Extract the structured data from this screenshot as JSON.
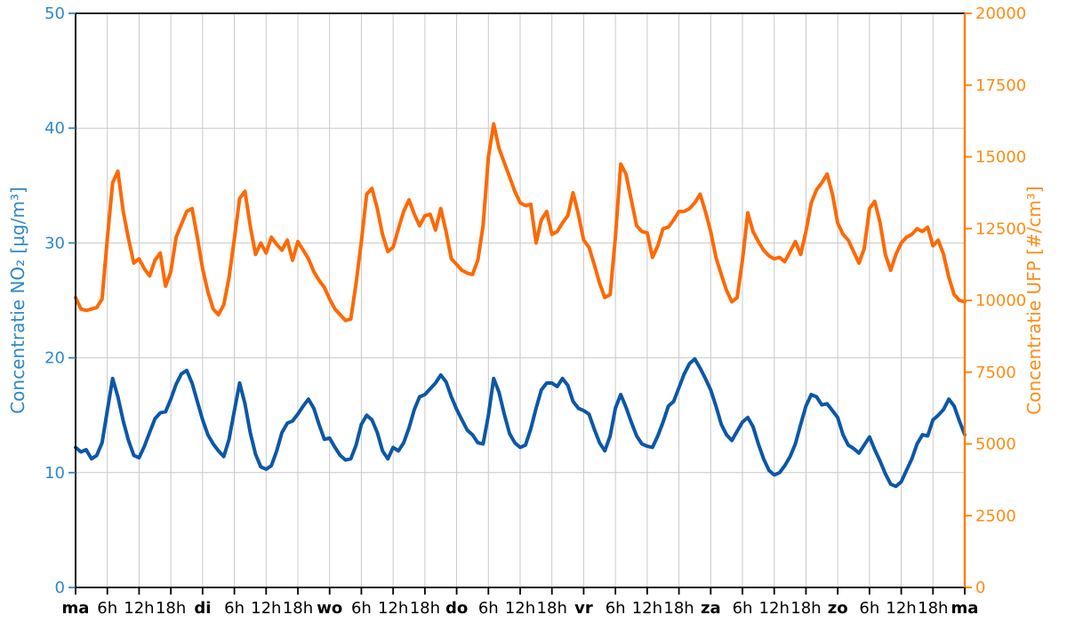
{
  "figure": {
    "background": "#ffffff",
    "grid_color": "#c9c9c9",
    "spine_color": "#000000"
  },
  "chart_data": {
    "type": "line",
    "title": "",
    "x_unit": "hour",
    "x_span_hours": 168,
    "grid": true,
    "x_ticks": [
      {
        "hour": 0,
        "label": "ma",
        "bold": true
      },
      {
        "hour": 6,
        "label": "6h",
        "bold": false
      },
      {
        "hour": 12,
        "label": "12h",
        "bold": false
      },
      {
        "hour": 18,
        "label": "18h",
        "bold": false
      },
      {
        "hour": 24,
        "label": "di",
        "bold": true
      },
      {
        "hour": 30,
        "label": "6h",
        "bold": false
      },
      {
        "hour": 36,
        "label": "12h",
        "bold": false
      },
      {
        "hour": 42,
        "label": "18h",
        "bold": false
      },
      {
        "hour": 48,
        "label": "wo",
        "bold": true
      },
      {
        "hour": 54,
        "label": "6h",
        "bold": false
      },
      {
        "hour": 60,
        "label": "12h",
        "bold": false
      },
      {
        "hour": 66,
        "label": "18h",
        "bold": false
      },
      {
        "hour": 72,
        "label": "do",
        "bold": true
      },
      {
        "hour": 78,
        "label": "6h",
        "bold": false
      },
      {
        "hour": 84,
        "label": "12h",
        "bold": false
      },
      {
        "hour": 90,
        "label": "18h",
        "bold": false
      },
      {
        "hour": 96,
        "label": "vr",
        "bold": true
      },
      {
        "hour": 102,
        "label": "6h",
        "bold": false
      },
      {
        "hour": 108,
        "label": "12h",
        "bold": false
      },
      {
        "hour": 114,
        "label": "18h",
        "bold": false
      },
      {
        "hour": 120,
        "label": "za",
        "bold": true
      },
      {
        "hour": 126,
        "label": "6h",
        "bold": false
      },
      {
        "hour": 132,
        "label": "12h",
        "bold": false
      },
      {
        "hour": 138,
        "label": "18h",
        "bold": false
      },
      {
        "hour": 144,
        "label": "zo",
        "bold": true
      },
      {
        "hour": 150,
        "label": "6h",
        "bold": false
      },
      {
        "hour": 156,
        "label": "12h",
        "bold": false
      },
      {
        "hour": 162,
        "label": "18h",
        "bold": false
      },
      {
        "hour": 168,
        "label": "ma",
        "bold": true
      }
    ],
    "left_axis": {
      "label": "Concentratie NO₂ [µg/m³]",
      "range": [
        0,
        50
      ],
      "ticks": [
        0,
        10,
        20,
        30,
        40,
        50
      ],
      "text_color": "#2f87c7",
      "spine_color": "#000000"
    },
    "right_axis": {
      "label": "Concentratie UFP [#/cm³]",
      "range": [
        0,
        20000
      ],
      "ticks": [
        0,
        2500,
        5000,
        7500,
        10000,
        12500,
        15000,
        17500,
        20000
      ],
      "text_color": "#fd8d15",
      "spine_color": "#fd7d03"
    },
    "series": [
      {
        "name": "NO2",
        "axis": "left",
        "color": "#0c57a7",
        "unit": "µg/m³",
        "values": [
          12.2,
          11.8,
          12.0,
          11.2,
          11.5,
          12.6,
          15.4,
          18.2,
          16.6,
          14.5,
          12.8,
          11.5,
          11.3,
          12.3,
          13.5,
          14.7,
          15.2,
          15.3,
          16.4,
          17.7,
          18.6,
          18.9,
          17.8,
          16.2,
          14.6,
          13.3,
          12.5,
          11.9,
          11.4,
          12.9,
          15.4,
          17.8,
          16.0,
          13.5,
          11.6,
          10.5,
          10.3,
          10.6,
          11.9,
          13.5,
          14.3,
          14.5,
          15.1,
          15.8,
          16.4,
          15.6,
          14.2,
          12.9,
          13.0,
          12.2,
          11.5,
          11.1,
          11.2,
          12.4,
          14.2,
          15.0,
          14.6,
          13.5,
          11.9,
          11.2,
          12.2,
          11.9,
          12.6,
          13.9,
          15.5,
          16.6,
          16.8,
          17.3,
          17.8,
          18.5,
          17.9,
          16.6,
          15.5,
          14.6,
          13.7,
          13.3,
          12.6,
          12.5,
          15.0,
          18.2,
          17.0,
          15.1,
          13.4,
          12.6,
          12.2,
          12.4,
          13.8,
          15.6,
          17.2,
          17.8,
          17.8,
          17.5,
          18.2,
          17.6,
          16.2,
          15.6,
          15.4,
          15.1,
          13.8,
          12.6,
          11.9,
          13.2,
          15.6,
          16.8,
          15.7,
          14.4,
          13.2,
          12.5,
          12.3,
          12.2,
          13.2,
          14.4,
          15.8,
          16.2,
          17.4,
          18.6,
          19.5,
          19.9,
          19.1,
          18.2,
          17.2,
          15.8,
          14.2,
          13.3,
          12.8,
          13.6,
          14.4,
          14.8,
          14.0,
          12.5,
          11.2,
          10.2,
          9.8,
          10.0,
          10.6,
          11.4,
          12.5,
          14.2,
          15.8,
          16.8,
          16.6,
          15.9,
          16.0,
          15.4,
          14.8,
          13.3,
          12.4,
          12.1,
          11.7,
          12.4,
          13.1,
          12.0,
          11.0,
          9.9,
          9.0,
          8.8,
          9.2,
          10.2,
          11.2,
          12.5,
          13.3,
          13.2,
          14.6,
          15.0,
          15.5,
          16.4,
          15.8,
          14.5,
          13.3
        ]
      },
      {
        "name": "UFP",
        "axis": "right",
        "color": "#fd6903",
        "unit": "#/cm³",
        "values": [
          10100,
          9700,
          9650,
          9700,
          9750,
          10050,
          12150,
          14100,
          14500,
          13100,
          12150,
          11300,
          11450,
          11100,
          10850,
          11400,
          11650,
          10500,
          11000,
          12200,
          12650,
          13100,
          13200,
          12200,
          11100,
          10300,
          9700,
          9500,
          9850,
          10800,
          12150,
          13550,
          13800,
          12600,
          11600,
          12000,
          11650,
          12200,
          11950,
          11750,
          12100,
          11400,
          12050,
          11750,
          11450,
          11000,
          10700,
          10450,
          10050,
          9700,
          9500,
          9300,
          9350,
          10600,
          12050,
          13700,
          13900,
          13200,
          12300,
          11700,
          11850,
          12500,
          13100,
          13500,
          13000,
          12600,
          12950,
          13000,
          12450,
          13200,
          12400,
          11450,
          11250,
          11050,
          10950,
          10900,
          11400,
          12600,
          15000,
          16150,
          15300,
          14800,
          14300,
          13800,
          13400,
          13300,
          13350,
          12000,
          12800,
          13100,
          12300,
          12400,
          12700,
          12950,
          13750,
          13000,
          12100,
          11850,
          11250,
          10600,
          10100,
          10200,
          12200,
          14750,
          14400,
          13500,
          12600,
          12400,
          12350,
          11500,
          11900,
          12500,
          12550,
          12800,
          13100,
          13100,
          13200,
          13400,
          13700,
          13100,
          12400,
          11500,
          10900,
          10350,
          9950,
          10100,
          11400,
          13050,
          12400,
          12050,
          11750,
          11550,
          11450,
          11500,
          11350,
          11700,
          12050,
          11600,
          12400,
          13400,
          13850,
          14100,
          14400,
          13700,
          12700,
          12300,
          12100,
          11700,
          11300,
          11800,
          13200,
          13450,
          12700,
          11600,
          11050,
          11600,
          12000,
          12200,
          12300,
          12500,
          12400,
          12550,
          11900,
          12100,
          11600,
          10800,
          10200,
          10000,
          9950
        ]
      }
    ]
  }
}
